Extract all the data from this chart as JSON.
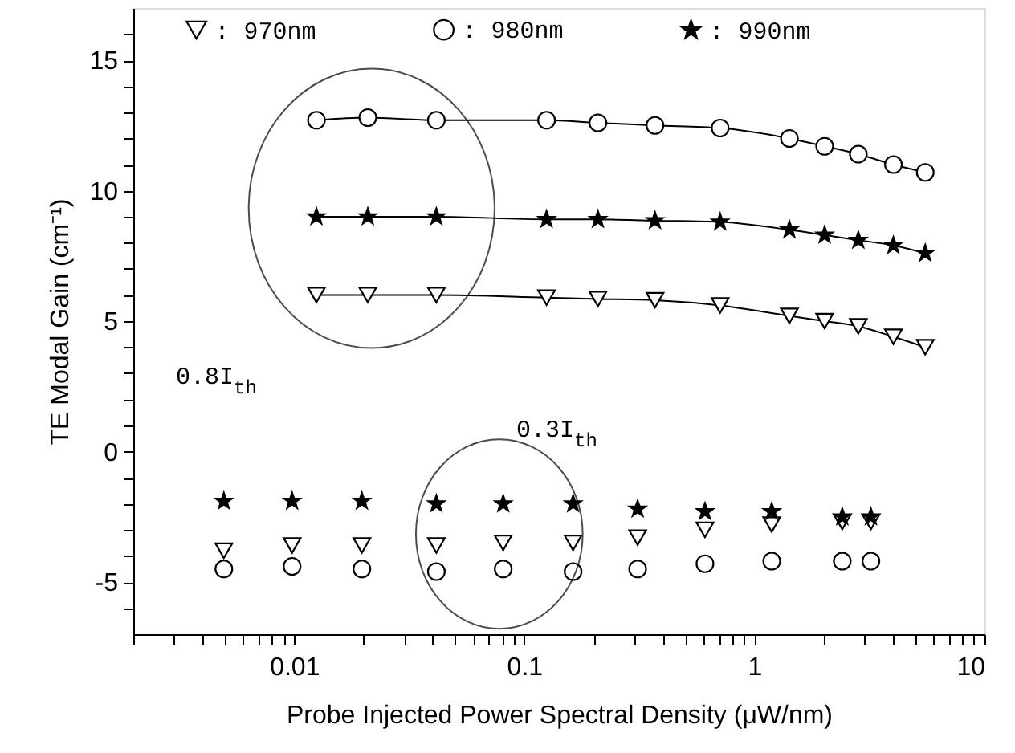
{
  "chart_data": {
    "type": "line",
    "xlabel": "Probe Injected Power Spectral Density (μW/nm)",
    "ylabel": "TE Modal Gain (cm⁻¹)",
    "log": "x",
    "xlim": [
      0.002,
      10
    ],
    "xticks": [
      {
        "value": 0.002,
        "label": null
      },
      {
        "value": 0.003,
        "label": null
      },
      {
        "value": 0.004,
        "label": null
      },
      {
        "value": 0.005,
        "label": null
      },
      {
        "value": 0.006,
        "label": null
      },
      {
        "value": 0.007,
        "label": null
      },
      {
        "value": 0.008,
        "label": null
      },
      {
        "value": 0.009,
        "label": null
      },
      0.01,
      {
        "value": 0.02,
        "label": null
      },
      {
        "value": 0.03,
        "label": null
      },
      {
        "value": 0.04,
        "label": null
      },
      {
        "value": 0.05,
        "label": null
      },
      {
        "value": 0.06,
        "label": null
      },
      {
        "value": 0.07,
        "label": null
      },
      {
        "value": 0.08,
        "label": null
      },
      {
        "value": 0.09,
        "label": null
      },
      0.1,
      {
        "value": 0.2,
        "label": null
      },
      {
        "value": 0.3,
        "label": null
      },
      {
        "value": 0.4,
        "label": null
      },
      {
        "value": 0.5,
        "label": null
      },
      {
        "value": 0.6,
        "label": null
      },
      {
        "value": 0.7,
        "label": null
      },
      {
        "value": 0.8,
        "label": null
      },
      {
        "value": 0.9,
        "label": null
      },
      1,
      {
        "value": 2,
        "label": null
      },
      {
        "value": 3,
        "label": null
      },
      {
        "value": 4,
        "label": null
      },
      {
        "value": 5,
        "label": null
      },
      {
        "value": 6,
        "label": null
      },
      {
        "value": 7,
        "label": null
      },
      {
        "value": 8,
        "label": null
      },
      {
        "value": 9,
        "label": null
      },
      10
    ],
    "ylim": [
      -7,
      17
    ],
    "yticks": [
      {
        "value": -6,
        "label": null
      },
      -5,
      {
        "value": -4,
        "label": null
      },
      {
        "value": -3,
        "label": null
      },
      {
        "value": -2,
        "label": null
      },
      {
        "value": -1,
        "label": null
      },
      0,
      {
        "value": 1,
        "label": null
      },
      {
        "value": 2,
        "label": null
      },
      {
        "value": 3,
        "label": null
      },
      {
        "value": 4,
        "label": null
      },
      5,
      {
        "value": 6,
        "label": null
      },
      {
        "value": 7,
        "label": null
      },
      {
        "value": 8,
        "label": null
      },
      {
        "value": 9,
        "label": null
      },
      10,
      {
        "value": 11,
        "label": null
      },
      {
        "value": 12,
        "label": null
      },
      {
        "value": 13,
        "label": null
      },
      {
        "value": 14,
        "label": null
      },
      15,
      {
        "value": 16,
        "label": null
      }
    ],
    "grid": false,
    "legend": "top",
    "series": [
      {
        "name": ": 970nm",
        "marker": "triangle",
        "color": "#000000",
        "x": [
          0.0125,
          0.0209,
          0.0415,
          0.125,
          0.209,
          0.37,
          0.71,
          1.42,
          2.02,
          2.83,
          4.02,
          5.53
        ],
        "values": [
          6.0,
          6.0,
          6.0,
          5.9,
          5.85,
          5.8,
          5.6,
          5.2,
          5.0,
          4.8,
          4.4,
          4.0
        ]
      },
      {
        "name": ": 980nm",
        "marker": "circle",
        "color": "#000000",
        "x": [
          0.0125,
          0.0209,
          0.0415,
          0.125,
          0.209,
          0.37,
          0.71,
          1.42,
          2.02,
          2.83,
          4.02,
          5.53
        ],
        "values": [
          12.7,
          12.8,
          12.7,
          12.7,
          12.6,
          12.5,
          12.4,
          12.0,
          11.7,
          11.4,
          11.0,
          10.7
        ]
      },
      {
        "name": ": 990nm",
        "marker": "star",
        "color": "#000000",
        "x": [
          0.0125,
          0.0209,
          0.0415,
          0.125,
          0.209,
          0.37,
          0.71,
          1.42,
          2.02,
          2.83,
          4.02,
          5.53
        ],
        "values": [
          9.0,
          9.0,
          9.0,
          8.9,
          8.9,
          8.85,
          8.8,
          8.5,
          8.3,
          8.1,
          7.9,
          7.6
        ]
      },
      {
        "type": "scatter",
        "marker": "triangle",
        "color": "#000000",
        "x": [
          0.00495,
          0.0098,
          0.0197,
          0.0415,
          0.081,
          0.163,
          0.311,
          0.61,
          1.19,
          2.41,
          3.21
        ],
        "values": [
          -3.8,
          -3.6,
          -3.6,
          -3.6,
          -3.5,
          -3.5,
          -3.3,
          -3.0,
          -2.8,
          -2.7,
          -2.7
        ]
      },
      {
        "type": "scatter",
        "marker": "circle",
        "color": "#000000",
        "x": [
          0.00495,
          0.0098,
          0.0197,
          0.0415,
          0.081,
          0.163,
          0.311,
          0.61,
          1.19,
          2.41,
          3.21
        ],
        "values": [
          -4.5,
          -4.4,
          -4.5,
          -4.6,
          -4.5,
          -4.6,
          -4.5,
          -4.3,
          -4.2,
          -4.2,
          -4.2
        ]
      },
      {
        "type": "scatter",
        "marker": "star",
        "color": "#000000",
        "x": [
          0.00495,
          0.0098,
          0.0197,
          0.0415,
          0.081,
          0.163,
          0.311,
          0.61,
          1.19,
          2.41,
          3.21
        ],
        "values": [
          -1.9,
          -1.9,
          -1.9,
          -2.0,
          -2.0,
          -2.0,
          -2.2,
          -2.3,
          -2.3,
          -2.5,
          -2.5
        ]
      }
    ],
    "annotations": [
      "0.8I$_{th}$",
      "0.3I$_{th}$"
    ]
  }
}
